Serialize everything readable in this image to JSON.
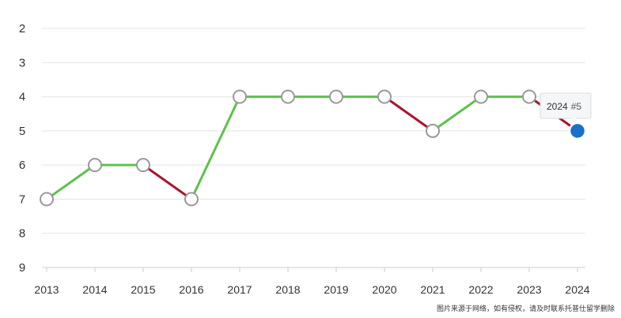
{
  "chart_data": {
    "type": "line",
    "x": [
      "2013",
      "2014",
      "2015",
      "2016",
      "2017",
      "2018",
      "2019",
      "2020",
      "2021",
      "2022",
      "2023",
      "2024"
    ],
    "series": [
      {
        "values": [
          7,
          6,
          6,
          7,
          4,
          4,
          4,
          4,
          5,
          4,
          4,
          5
        ]
      }
    ],
    "y_ticks": [
      "2",
      "3",
      "4",
      "5",
      "6",
      "7",
      "8",
      "9"
    ],
    "ylim": [
      2,
      9
    ],
    "y_inverted": true,
    "grid": true,
    "colors": {
      "improve": "#5cc24a",
      "decline": "#b0102a",
      "marker_fill": "#ffffff",
      "marker_stroke": "#999999",
      "highlight": "#1a6fc9",
      "grid": "#e4e4e4"
    },
    "tooltip": {
      "year": "2024",
      "rank": "#5"
    }
  },
  "footnote": "图片来源于网络，如有侵权，请及时联系托普仕留学删除"
}
